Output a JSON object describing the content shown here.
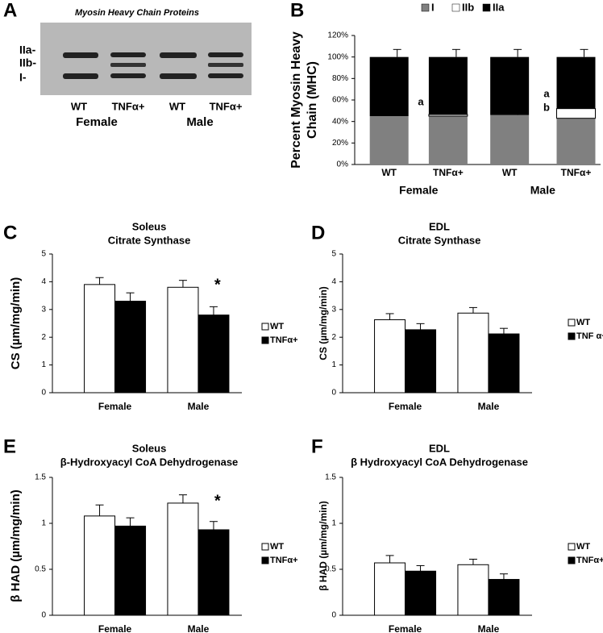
{
  "gel": {
    "panel_label": "A",
    "title": "Myosin Heavy Chain Proteins",
    "band_labels": [
      "IIa-",
      "IIb-",
      "I-"
    ],
    "lanes": [
      "WT",
      "TNFα+",
      "WT",
      "TNFα+"
    ],
    "groups": [
      "Female",
      "Male"
    ]
  },
  "chart_data": [
    {
      "type": "stacked-bar",
      "panel_label": "B",
      "ylabel": [
        "Percent Myosin Heavy",
        "Chain (MHC)"
      ],
      "categories": [
        "WT",
        "TNFα+",
        "WT",
        "TNFα+"
      ],
      "groups": [
        "Female",
        "Male"
      ],
      "series": [
        {
          "name": "I",
          "color": "#808080",
          "values": [
            45,
            45,
            46,
            43
          ],
          "errors": [
            7,
            7,
            7,
            6
          ]
        },
        {
          "name": "IIb",
          "color": "#ffffff",
          "values": [
            0,
            1.5,
            0,
            9
          ]
        },
        {
          "name": "IIa",
          "color": "#000000",
          "values": [
            55,
            53.5,
            54,
            48
          ],
          "errors": [
            7,
            7,
            7,
            7
          ]
        }
      ],
      "ylim": [
        0,
        120
      ],
      "yticks": [
        {
          "value": 0,
          "label": "0%"
        },
        {
          "value": 20,
          "label": "20%"
        },
        {
          "value": 40,
          "label": "40%"
        },
        {
          "value": 60,
          "label": "60%"
        },
        {
          "value": 80,
          "label": "80%"
        },
        {
          "value": 100,
          "label": "100%"
        },
        {
          "value": 120,
          "label": "120%"
        }
      ],
      "annotations": [
        "a",
        "a",
        "b"
      ],
      "legend": "top"
    },
    {
      "type": "bar",
      "panel_label": "C",
      "title": "Soleus",
      "subtitle": "Citrate Synthase",
      "ylabel": "CS (µm/mg/min)",
      "categories": [
        "Female",
        "Male"
      ],
      "series": [
        {
          "name": "WT",
          "color": "#ffffff",
          "values": [
            3.9,
            3.8
          ],
          "errors": [
            0.25,
            0.25
          ]
        },
        {
          "name": "TNFα+",
          "color": "#000000",
          "values": [
            3.3,
            2.8
          ],
          "errors": [
            0.3,
            0.3
          ]
        }
      ],
      "ylim": [
        0,
        5
      ],
      "yticks": [
        0,
        1,
        2,
        3,
        4,
        5
      ],
      "annotations": [
        "*"
      ],
      "legend": "right"
    },
    {
      "type": "bar",
      "panel_label": "D",
      "title": "EDL",
      "subtitle": "Citrate Synthase",
      "ylabel": "CS (µm/mg/min)",
      "categories": [
        "Female",
        "Male"
      ],
      "series": [
        {
          "name": "WT",
          "color": "#ffffff",
          "values": [
            2.63,
            2.87
          ],
          "errors": [
            0.22,
            0.2
          ]
        },
        {
          "name": "TNF α+",
          "color": "#000000",
          "values": [
            2.27,
            2.12
          ],
          "errors": [
            0.22,
            0.2
          ]
        }
      ],
      "ylim": [
        0,
        5
      ],
      "yticks": [
        0,
        1,
        2,
        3,
        4,
        5
      ],
      "legend": "right"
    },
    {
      "type": "bar",
      "panel_label": "E",
      "title": "Soleus",
      "subtitle": "β-Hydroxyacyl CoA Dehydrogenase",
      "ylabel": "β HAD (µm/mg/min)",
      "categories": [
        "Female",
        "Male"
      ],
      "series": [
        {
          "name": "WT",
          "color": "#ffffff",
          "values": [
            1.08,
            1.22
          ],
          "errors": [
            0.12,
            0.09
          ]
        },
        {
          "name": "TNFα+",
          "color": "#000000",
          "values": [
            0.97,
            0.93
          ],
          "errors": [
            0.09,
            0.09
          ]
        }
      ],
      "ylim": [
        0,
        1.5
      ],
      "yticks": [
        0,
        0.5,
        1,
        1.5
      ],
      "annotations": [
        "*"
      ],
      "legend": "right"
    },
    {
      "type": "bar",
      "panel_label": "F",
      "title": "EDL",
      "subtitle": "β Hydroxyacyl CoA Dehydrogenase",
      "ylabel": "β HAD (µm/mg/min)",
      "categories": [
        "Female",
        "Male"
      ],
      "series": [
        {
          "name": "WT",
          "color": "#ffffff",
          "values": [
            0.57,
            0.55
          ],
          "errors": [
            0.08,
            0.06
          ]
        },
        {
          "name": "TNFα+",
          "color": "#000000",
          "values": [
            0.48,
            0.39
          ],
          "errors": [
            0.06,
            0.06
          ]
        }
      ],
      "ylim": [
        0,
        1.5
      ],
      "yticks": [
        0,
        0.5,
        1,
        1.5
      ],
      "legend": "right"
    }
  ]
}
